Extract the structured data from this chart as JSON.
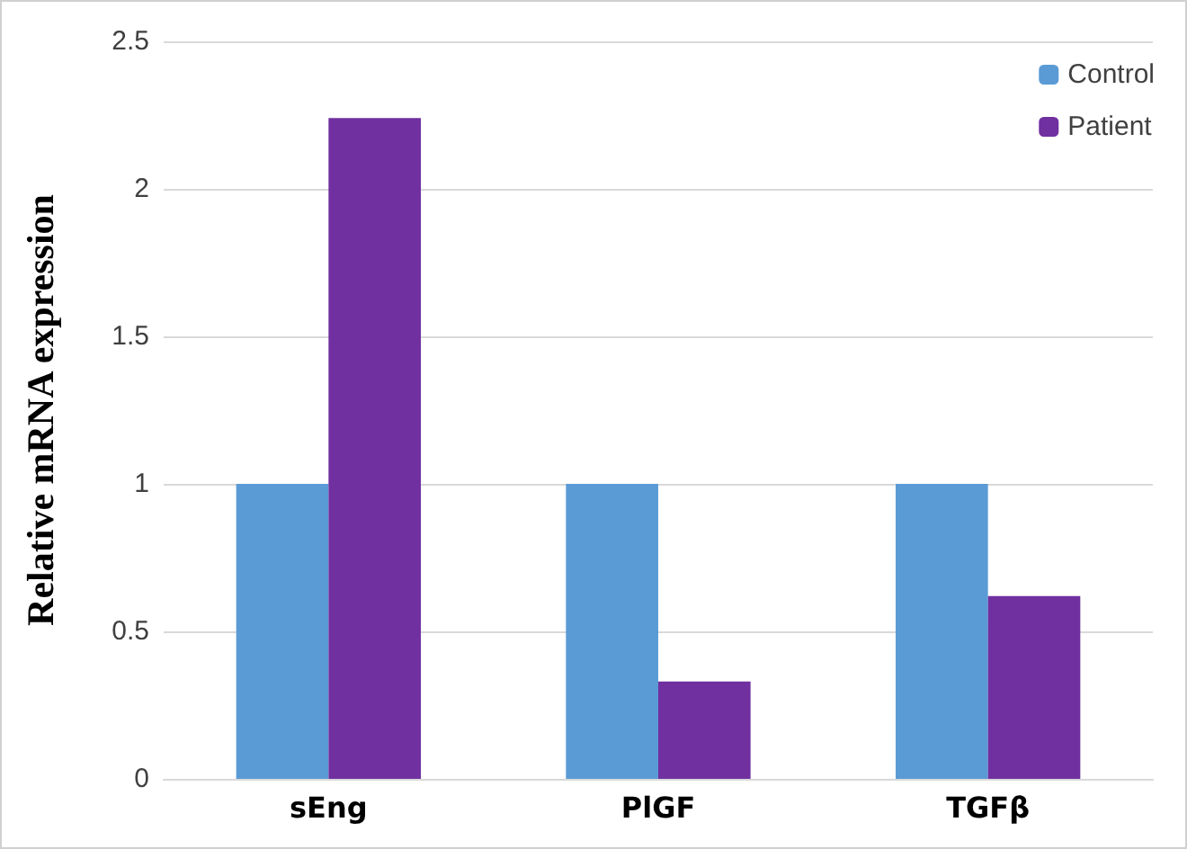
{
  "chart_data": {
    "type": "bar",
    "ylabel": "Relative mRNA expression",
    "categories": [
      "sEng",
      "PlGF",
      "TGFβ"
    ],
    "series": [
      {
        "name": "Control",
        "color": "#5b9bd5",
        "values": [
          1,
          1,
          1
        ]
      },
      {
        "name": "Patient",
        "color": "#7030a0",
        "values": [
          2.24,
          0.33,
          0.62
        ]
      }
    ],
    "ylim": [
      0,
      2.5
    ],
    "yticks": [
      0,
      0.5,
      1,
      1.5,
      2,
      2.5
    ],
    "grid": "y",
    "legend": "top right"
  }
}
